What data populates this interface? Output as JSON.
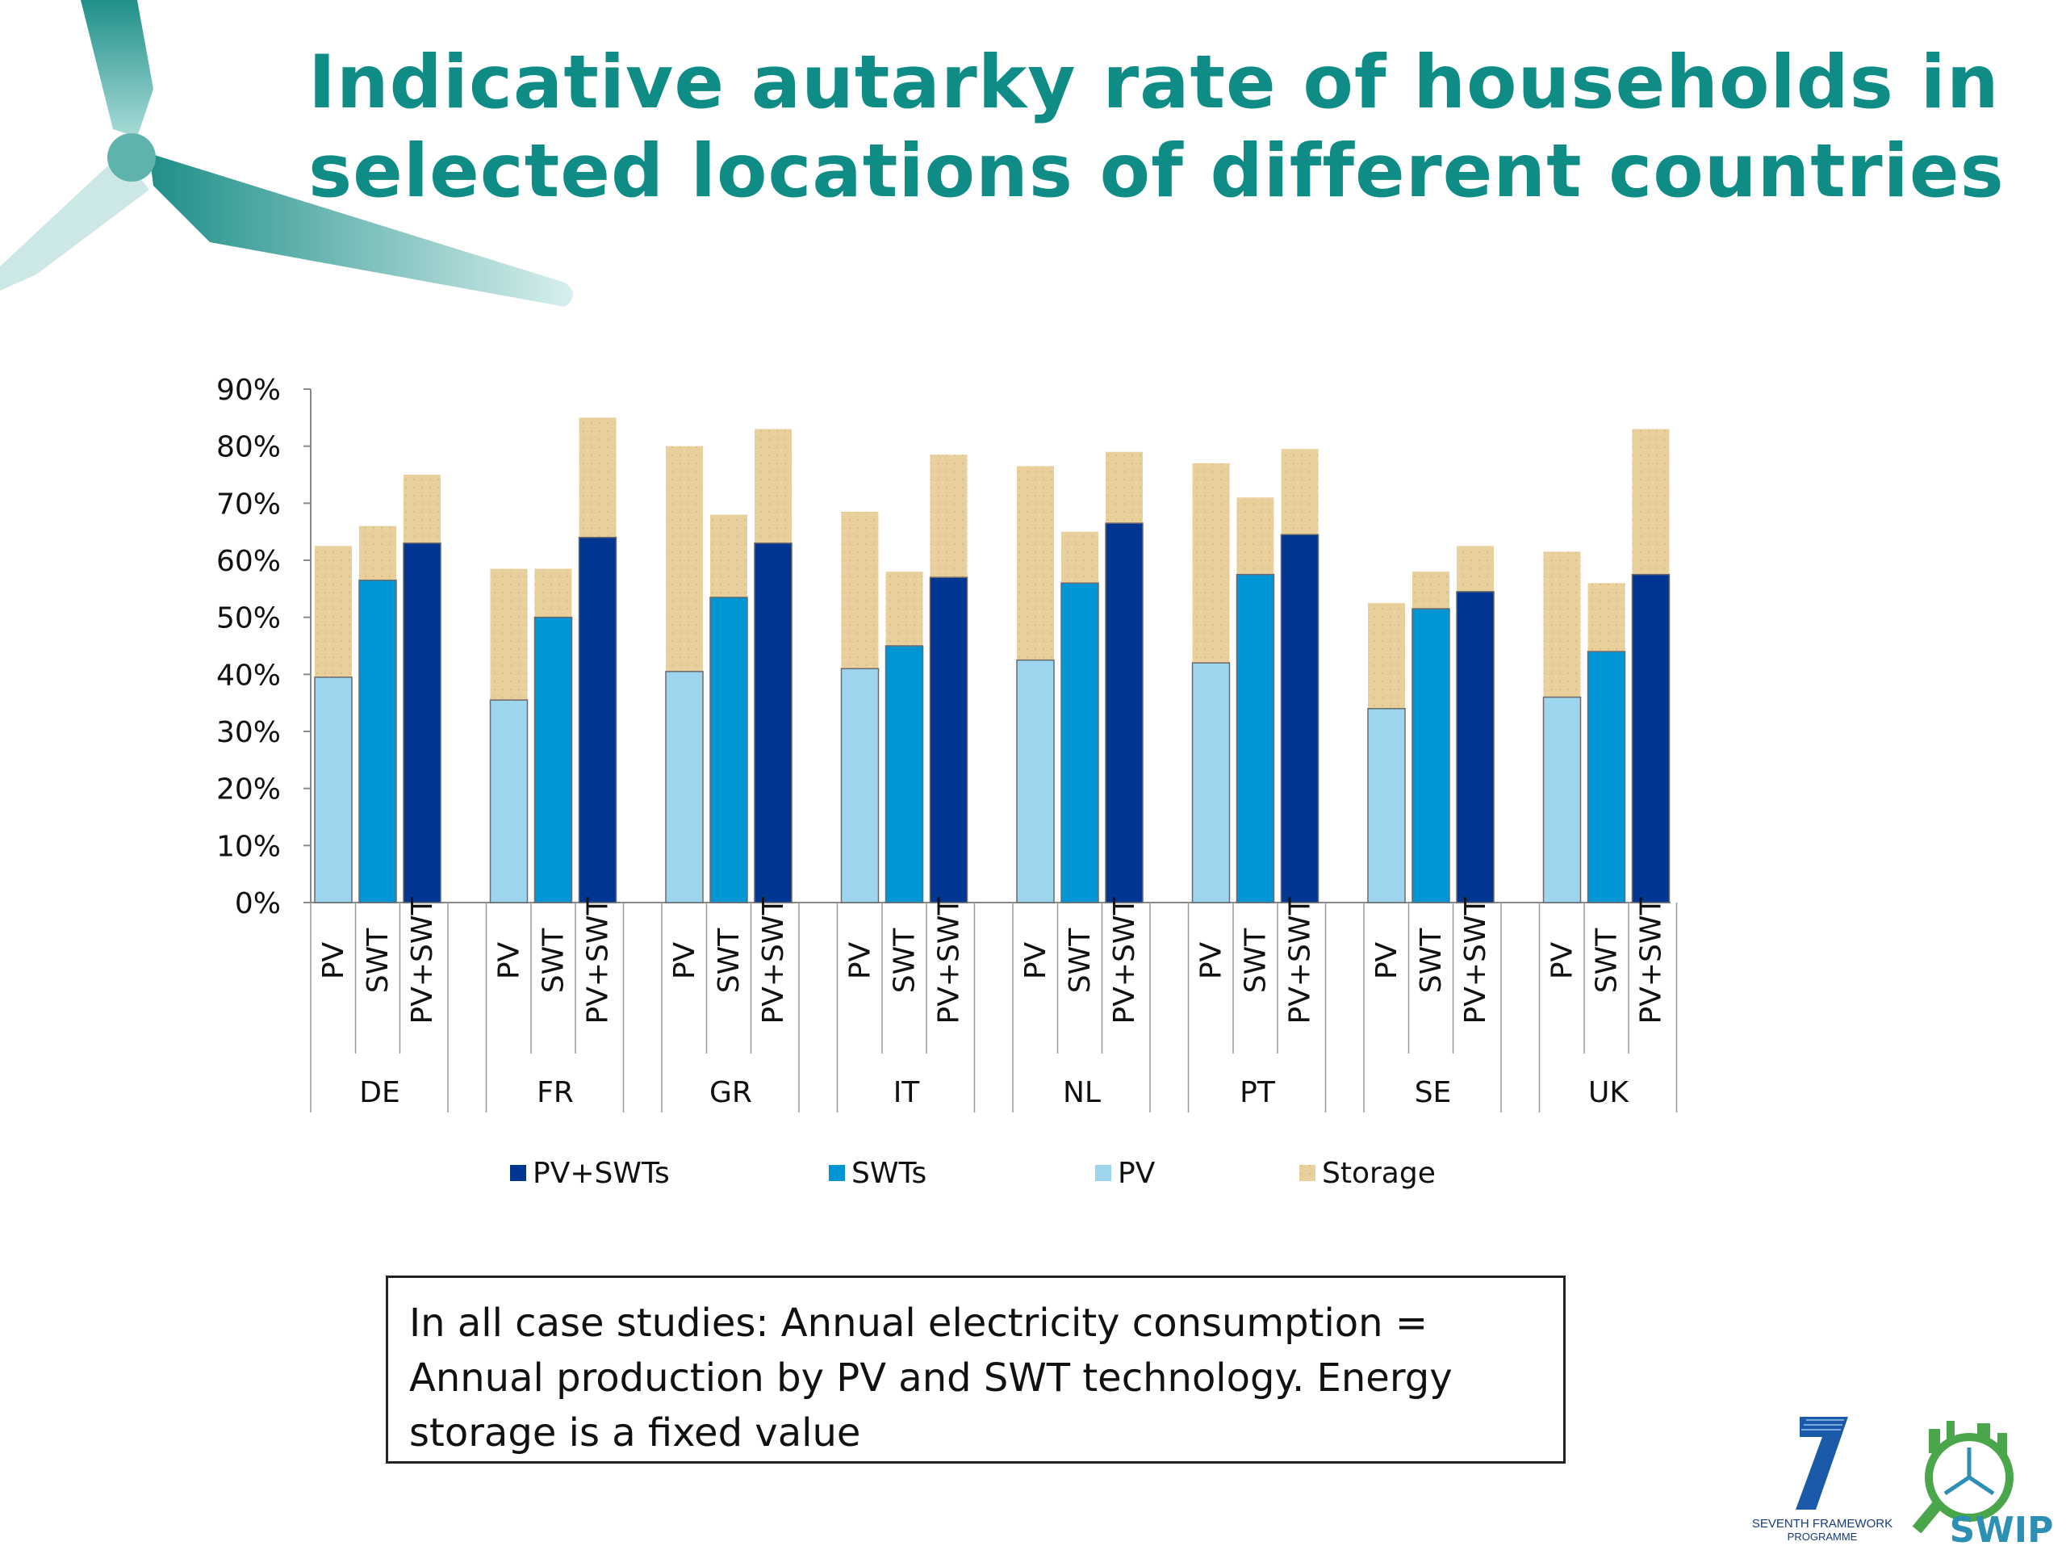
{
  "title": {
    "line1": "Indicative autarky rate of households in",
    "line2": "selected locations of different countries"
  },
  "chart_data": {
    "type": "bar",
    "stacked": true,
    "ylim": [
      0,
      90
    ],
    "yticks": [
      "0%",
      "10%",
      "20%",
      "30%",
      "40%",
      "50%",
      "60%",
      "70%",
      "80%",
      "90%"
    ],
    "grid": false,
    "legend_position": "bottom",
    "countries": [
      "DE",
      "FR",
      "GR",
      "IT",
      "NL",
      "PT",
      "SE",
      "UK"
    ],
    "technologies": [
      "PV",
      "SWT",
      "PV+SWT"
    ],
    "base_values": [
      [
        39.5,
        56.5,
        63.0
      ],
      [
        35.5,
        50.0,
        64.0
      ],
      [
        40.5,
        53.5,
        63.0
      ],
      [
        41.0,
        45.0,
        57.0
      ],
      [
        42.5,
        56.0,
        66.5
      ],
      [
        42.0,
        57.5,
        64.5
      ],
      [
        34.0,
        51.5,
        54.5
      ],
      [
        36.0,
        44.0,
        57.5
      ]
    ],
    "storage_values": [
      [
        23.0,
        9.5,
        12.0
      ],
      [
        23.0,
        8.5,
        21.0
      ],
      [
        39.5,
        14.5,
        20.0
      ],
      [
        27.5,
        13.0,
        21.5
      ],
      [
        34.0,
        9.0,
        12.5
      ],
      [
        35.0,
        13.5,
        15.0
      ],
      [
        18.5,
        6.5,
        8.0
      ],
      [
        25.5,
        12.0,
        25.5
      ]
    ],
    "legend": [
      "PV+SWTs",
      "SWTs",
      "PV",
      "Storage"
    ],
    "colors": {
      "PV+SWT": "#003591",
      "SWT": "#0096d6",
      "PV": "#9dd5ef",
      "Storage": "#e8cf9c",
      "accent": "#0e8c85"
    }
  },
  "note": {
    "text": "In all case studies: Annual electricity consumption = Annual production by PV and SWT technology. Energy storage is a fixed value"
  },
  "logos": {
    "fp7_line1": "SEVENTH FRAMEWORK",
    "fp7_line2": "PROGRAMME",
    "swip": "SWIP"
  }
}
